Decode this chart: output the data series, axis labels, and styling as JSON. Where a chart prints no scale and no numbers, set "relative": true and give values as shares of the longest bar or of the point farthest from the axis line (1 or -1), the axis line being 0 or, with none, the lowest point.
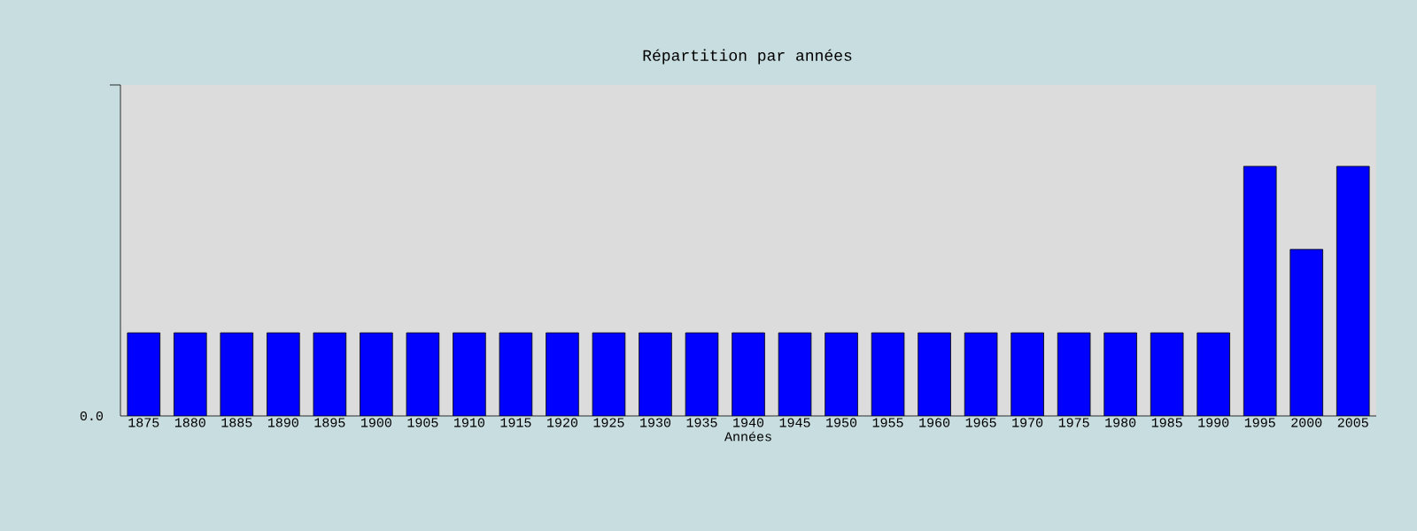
{
  "chart_data": {
    "type": "bar",
    "title": "Répartition par années",
    "xlabel": "Années",
    "relative": true,
    "color": "#0000ff",
    "categories": [
      "1875",
      "1880",
      "1885",
      "1890",
      "1895",
      "1900",
      "1905",
      "1910",
      "1915",
      "1920",
      "1925",
      "1930",
      "1935",
      "1940",
      "1945",
      "1950",
      "1955",
      "1960",
      "1965",
      "1970",
      "1975",
      "1980",
      "1985",
      "1990",
      "1995",
      "2000",
      "2005"
    ],
    "values": [
      0.333,
      0.333,
      0.333,
      0.333,
      0.333,
      0.333,
      0.333,
      0.333,
      0.333,
      0.333,
      0.333,
      0.333,
      0.333,
      0.333,
      0.333,
      0.333,
      0.333,
      0.333,
      0.333,
      0.333,
      0.333,
      0.333,
      0.333,
      0.333,
      1,
      0.667,
      1
    ],
    "annotations": [
      "0.0"
    ]
  }
}
